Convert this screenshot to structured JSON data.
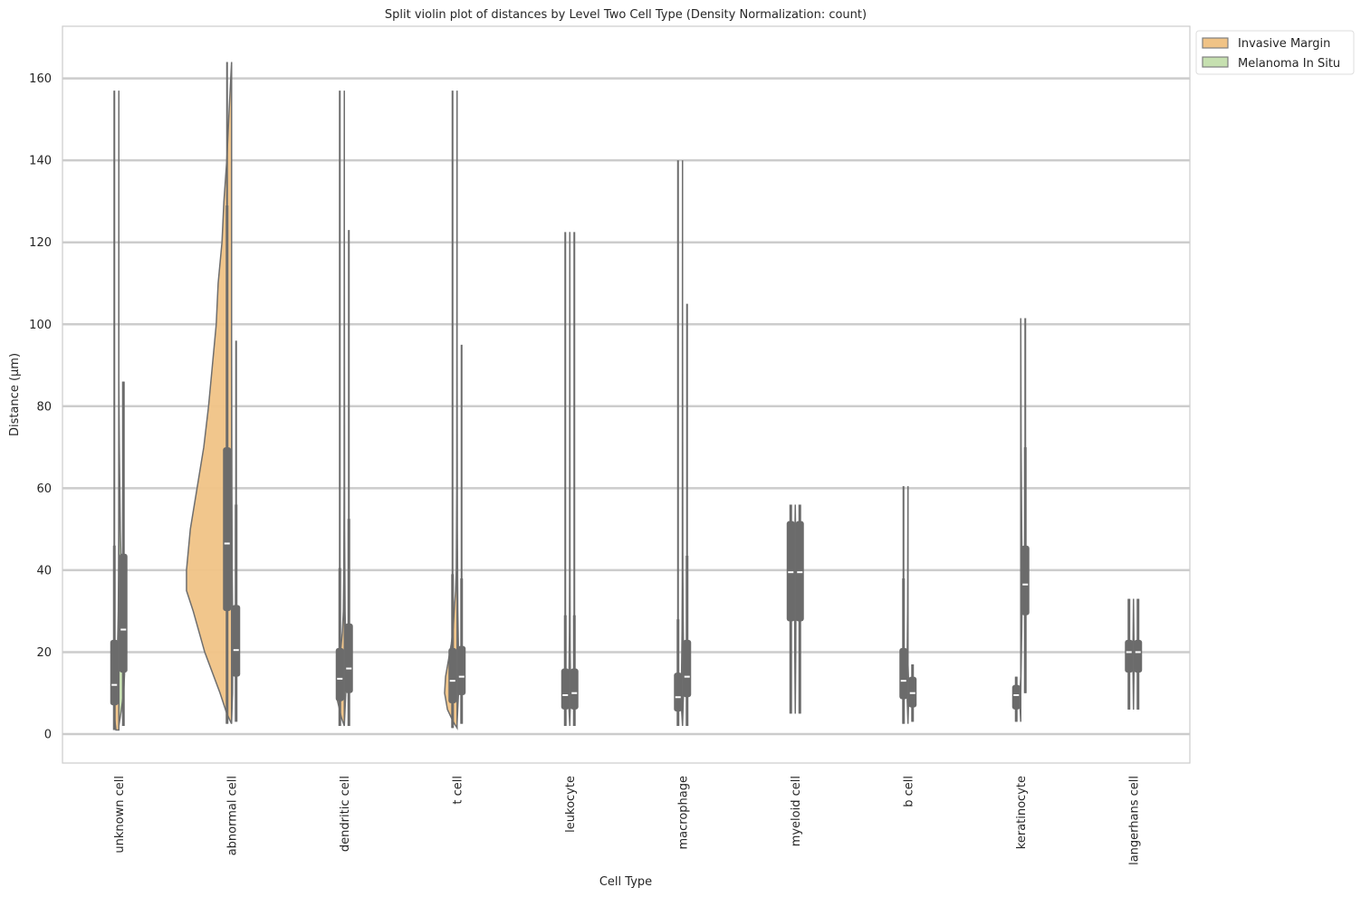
{
  "chart_data": {
    "type": "violin",
    "title": "Split violin plot of distances by Level Two Cell Type (Density Normalization: count)",
    "xlabel": "Cell Type",
    "ylabel": "Distance (µm)",
    "ylim": [
      -8,
      172
    ],
    "yticks": [
      0,
      20,
      40,
      60,
      80,
      100,
      120,
      140,
      160
    ],
    "grid": "horizontal",
    "legend_position": "outside-top-right",
    "series": [
      {
        "name": "Invasive Margin",
        "color": "#f0c386"
      },
      {
        "name": "Melanoma In Situ",
        "color": "#c6e0b0"
      }
    ],
    "categories": [
      "unknown cell",
      "abnormal cell",
      "dendritic cell",
      "t cell",
      "leukocyte",
      "macrophage",
      "myeloid cell",
      "b cell",
      "keratinocyte",
      "langerhans cell"
    ],
    "groups": [
      {
        "category": "unknown cell",
        "invasive_margin": {
          "min": 1,
          "q1": 7,
          "median": 12,
          "q3": 23,
          "max": 157,
          "whisker": 46,
          "density": [
            [
              1,
              3
            ],
            [
              5,
              5
            ],
            [
              10,
              4
            ],
            [
              15,
              2.5
            ],
            [
              20,
              1.5
            ],
            [
              25,
              1
            ],
            [
              30,
              0.6
            ],
            [
              40,
              0.3
            ],
            [
              50,
              0.15
            ],
            [
              157,
              0
            ]
          ]
        },
        "melanoma_in_situ": {
          "min": 2,
          "q1": 15,
          "median": 25.5,
          "q3": 44,
          "max": 86,
          "whisker": 86,
          "density": [
            [
              2,
              0
            ],
            [
              5,
              2
            ],
            [
              10,
              5
            ],
            [
              15,
              6
            ],
            [
              20,
              6
            ],
            [
              25,
              5.5
            ],
            [
              30,
              4.5
            ],
            [
              40,
              2.5
            ],
            [
              50,
              1.5
            ],
            [
              60,
              1
            ],
            [
              70,
              0.5
            ],
            [
              86,
              0
            ]
          ]
        }
      },
      {
        "category": "abnormal cell",
        "invasive_margin": {
          "min": 2.5,
          "q1": 30,
          "median": 46.5,
          "q3": 70,
          "max": 164,
          "whisker": 129,
          "density": [
            [
              2.5,
              0
            ],
            [
              5,
              5
            ],
            [
              10,
              12
            ],
            [
              20,
              28
            ],
            [
              30,
              40
            ],
            [
              35,
              47
            ],
            [
              40,
              47
            ],
            [
              50,
              43
            ],
            [
              60,
              36
            ],
            [
              70,
              29
            ],
            [
              80,
              24
            ],
            [
              90,
              20
            ],
            [
              100,
              16
            ],
            [
              110,
              14
            ],
            [
              120,
              10
            ],
            [
              130,
              8
            ],
            [
              140,
              5
            ],
            [
              150,
              3
            ],
            [
              164,
              0
            ]
          ]
        },
        "melanoma_in_situ": {
          "min": 3,
          "q1": 14,
          "median": 20.5,
          "q3": 31.5,
          "max": 96,
          "whisker": 56,
          "density": [
            [
              3,
              0
            ],
            [
              10,
              1
            ],
            [
              20,
              1.2
            ],
            [
              30,
              1
            ],
            [
              40,
              0.6
            ],
            [
              60,
              0.3
            ],
            [
              96,
              0
            ]
          ]
        }
      },
      {
        "category": "dendritic cell",
        "invasive_margin": {
          "min": 2,
          "q1": 8,
          "median": 13.5,
          "q3": 21,
          "max": 157,
          "whisker": 40.5,
          "density": [
            [
              2,
              0
            ],
            [
              4,
              3
            ],
            [
              8,
              7
            ],
            [
              12,
              8
            ],
            [
              15,
              7
            ],
            [
              20,
              4
            ],
            [
              25,
              2
            ],
            [
              30,
              1
            ],
            [
              40,
              0.5
            ],
            [
              60,
              0.2
            ],
            [
              157,
              0
            ]
          ]
        },
        "melanoma_in_situ": {
          "min": 2,
          "q1": 10,
          "median": 16,
          "q3": 27,
          "max": 123,
          "whisker": 52.5,
          "density": [
            [
              2,
              0
            ],
            [
              10,
              1.5
            ],
            [
              15,
              2
            ],
            [
              20,
              1.5
            ],
            [
              30,
              0.8
            ],
            [
              50,
              0.3
            ],
            [
              123,
              0
            ]
          ]
        }
      },
      {
        "category": "t cell",
        "invasive_margin": {
          "min": 1.5,
          "q1": 7.5,
          "median": 13,
          "q3": 21,
          "max": 157,
          "whisker": 39,
          "density": [
            [
              1.5,
              0
            ],
            [
              3,
              4
            ],
            [
              6,
              10
            ],
            [
              10,
              13
            ],
            [
              14,
              12
            ],
            [
              18,
              9
            ],
            [
              22,
              6
            ],
            [
              26,
              4
            ],
            [
              30,
              3
            ],
            [
              35,
              1.5
            ],
            [
              40,
              0.8
            ],
            [
              60,
              0.3
            ],
            [
              157,
              0
            ]
          ]
        },
        "melanoma_in_situ": {
          "min": 2.5,
          "q1": 9.5,
          "median": 14,
          "q3": 21.5,
          "max": 95,
          "whisker": 38,
          "density": [
            [
              2.5,
              0
            ],
            [
              10,
              1.5
            ],
            [
              15,
              2
            ],
            [
              20,
              1.5
            ],
            [
              30,
              0.8
            ],
            [
              50,
              0.3
            ],
            [
              95,
              0
            ]
          ]
        }
      },
      {
        "category": "leukocyte",
        "invasive_margin": {
          "min": 2,
          "q1": 6,
          "median": 9.5,
          "q3": 16,
          "max": 122.5,
          "whisker": 29,
          "density": [
            [
              2,
              0
            ],
            [
              6,
              0.8
            ],
            [
              10,
              1
            ],
            [
              15,
              0.8
            ],
            [
              25,
              0.4
            ],
            [
              40,
              0.2
            ],
            [
              122.5,
              0
            ]
          ]
        },
        "melanoma_in_situ": {
          "min": 2,
          "q1": 6,
          "median": 10,
          "q3": 16,
          "max": 122.5,
          "whisker": 29,
          "density": [
            [
              2,
              0
            ],
            [
              8,
              0.6
            ],
            [
              12,
              0.8
            ],
            [
              20,
              0.4
            ],
            [
              40,
              0.2
            ],
            [
              122.5,
              0
            ]
          ]
        }
      },
      {
        "category": "macrophage",
        "invasive_margin": {
          "min": 2,
          "q1": 5.5,
          "median": 9,
          "q3": 15,
          "max": 140,
          "whisker": 28,
          "density": [
            [
              2,
              0
            ],
            [
              6,
              1
            ],
            [
              10,
              1.3
            ],
            [
              15,
              1
            ],
            [
              25,
              0.5
            ],
            [
              40,
              0.2
            ],
            [
              140,
              0
            ]
          ]
        },
        "melanoma_in_situ": {
          "min": 2,
          "q1": 9,
          "median": 14,
          "q3": 23,
          "max": 105,
          "whisker": 43.5,
          "density": [
            [
              2,
              0
            ],
            [
              10,
              1
            ],
            [
              15,
              1.2
            ],
            [
              25,
              0.8
            ],
            [
              40,
              0.3
            ],
            [
              105,
              0
            ]
          ]
        }
      },
      {
        "category": "myeloid cell",
        "invasive_margin": {
          "min": 5,
          "q1": 27.5,
          "median": 39.5,
          "q3": 52,
          "max": 56,
          "whisker": 56,
          "density": [
            [
              5,
              0
            ],
            [
              20,
              0.5
            ],
            [
              40,
              0.8
            ],
            [
              56,
              0
            ]
          ]
        },
        "melanoma_in_situ": {
          "min": 5,
          "q1": 27.5,
          "median": 39.5,
          "q3": 52,
          "max": 56,
          "whisker": 56,
          "density": [
            [
              5,
              0
            ],
            [
              20,
              0.5
            ],
            [
              40,
              0.8
            ],
            [
              56,
              0
            ]
          ]
        }
      },
      {
        "category": "b cell",
        "invasive_margin": {
          "min": 2.5,
          "q1": 8.5,
          "median": 13,
          "q3": 21,
          "max": 60.5,
          "whisker": 38,
          "density": [
            [
              2.5,
              0
            ],
            [
              8,
              0.8
            ],
            [
              13,
              1
            ],
            [
              20,
              0.8
            ],
            [
              30,
              0.4
            ],
            [
              60.5,
              0
            ]
          ]
        },
        "melanoma_in_situ": {
          "min": 3,
          "q1": 6.5,
          "median": 10,
          "q3": 14,
          "max": 17,
          "whisker": 17,
          "density": [
            [
              3,
              0
            ],
            [
              8,
              0.6
            ],
            [
              12,
              0.7
            ],
            [
              17,
              0
            ]
          ]
        }
      },
      {
        "category": "keratinocyte",
        "invasive_margin": {
          "min": 3,
          "q1": 6,
          "median": 9.5,
          "q3": 12,
          "max": 14,
          "whisker": 14,
          "density": [
            [
              3,
              0
            ],
            [
              6,
              0.6
            ],
            [
              10,
              0.8
            ],
            [
              14,
              0
            ]
          ]
        },
        "melanoma_in_situ": {
          "min": 10,
          "q1": 29,
          "median": 36.5,
          "q3": 46,
          "max": 101.5,
          "whisker": 70,
          "density": [
            [
              10,
              0
            ],
            [
              25,
              1
            ],
            [
              37,
              1.5
            ],
            [
              50,
              1
            ],
            [
              70,
              0.4
            ],
            [
              101.5,
              0
            ]
          ]
        }
      },
      {
        "category": "langerhans cell",
        "invasive_margin": {
          "min": 6,
          "q1": 15,
          "median": 20,
          "q3": 23,
          "max": 33,
          "whisker": 33,
          "density": [
            [
              6,
              0
            ],
            [
              15,
              0.5
            ],
            [
              20,
              0.6
            ],
            [
              33,
              0
            ]
          ]
        },
        "melanoma_in_situ": {
          "min": 6,
          "q1": 15,
          "median": 20,
          "q3": 23,
          "max": 33,
          "whisker": 33,
          "density": [
            [
              6,
              0
            ],
            [
              15,
              0.5
            ],
            [
              20,
              0.6
            ],
            [
              33,
              0
            ]
          ]
        }
      }
    ]
  }
}
